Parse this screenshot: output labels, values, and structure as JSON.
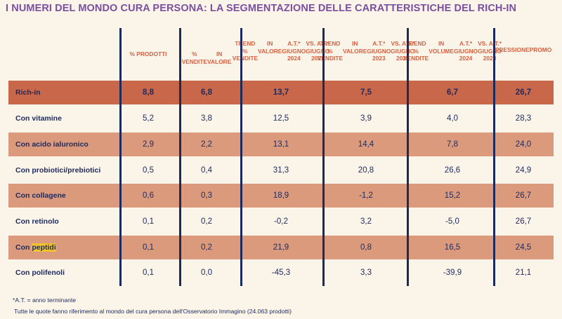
{
  "title": "I NUMERI DEL MONDO CURA PERSONA: LA SEGMENTAZIONE DELLE CARATTERISTICHE DEL RICH-IN",
  "columns": [
    [
      "% PRODOTTI"
    ],
    [
      "% VENDITE",
      "IN VALORE"
    ],
    [
      "TREND % VENDITE",
      "IN VALORE",
      "A.T.* GIUGNO 2024",
      "VS. A.T.* GIUGNO 2023"
    ],
    [
      "TREND % VENDITE",
      "IN VALORE",
      "A.T.* GIUGNO 2023",
      "VS. A.T.* GIUGNO 2022"
    ],
    [
      "TREND % VENDITE",
      "IN VOLUME",
      "A.T.* GIUGNO 2024",
      "VS. A.T.* GIUGNO 2023"
    ],
    [
      "PRESSIONE",
      "PROMO"
    ]
  ],
  "rows": [
    {
      "label": "Rich-in",
      "values": [
        "8,8",
        "6,8",
        "13,7",
        "7,5",
        "6,7",
        "26,7"
      ]
    },
    {
      "label": "Con vitamine",
      "values": [
        "5,2",
        "3,8",
        "12,5",
        "3,9",
        "4,0",
        "28,3"
      ]
    },
    {
      "label": "Con acido ialuronico",
      "values": [
        "2,9",
        "2,2",
        "13,1",
        "14,4",
        "7,8",
        "24,0"
      ]
    },
    {
      "label": "Con probiotici/prebiotici",
      "values": [
        "0,5",
        "0,4",
        "31,3",
        "20,8",
        "26,6",
        "24,9"
      ]
    },
    {
      "label": "Con collagene",
      "values": [
        "0,6",
        "0,3",
        "18,9",
        "-1,2",
        "15,2",
        "26,7"
      ]
    },
    {
      "label": "Con retinolo",
      "values": [
        "0,1",
        "0,2",
        "-0,2",
        "3,2",
        "-5,0",
        "26,7"
      ]
    },
    {
      "label_prefix": "Con ",
      "label_highlight": "peptidi",
      "values": [
        "0,1",
        "0,2",
        "21,9",
        "0,8",
        "16,5",
        "24,5"
      ]
    },
    {
      "label": "Con polifenoli",
      "values": [
        "0,1",
        "0,0",
        "-45,3",
        "3,3",
        "-39,9",
        "21,1"
      ]
    }
  ],
  "footnotes": {
    "at": "*A.T. = anno terminante",
    "source": "Tutte le quote fanno riferimento al mondo del cura persona dell'Osservatorio Immagino (24.063 prodotti)"
  },
  "colors": {
    "title": "#7b4fa0",
    "header": "#d9603f",
    "text": "#1c2a5e",
    "rich_in_row": "#c9674a",
    "alt_row": "#dc9a7c",
    "light_row": "#fbf4e9",
    "highlight": "#f2c12e"
  }
}
